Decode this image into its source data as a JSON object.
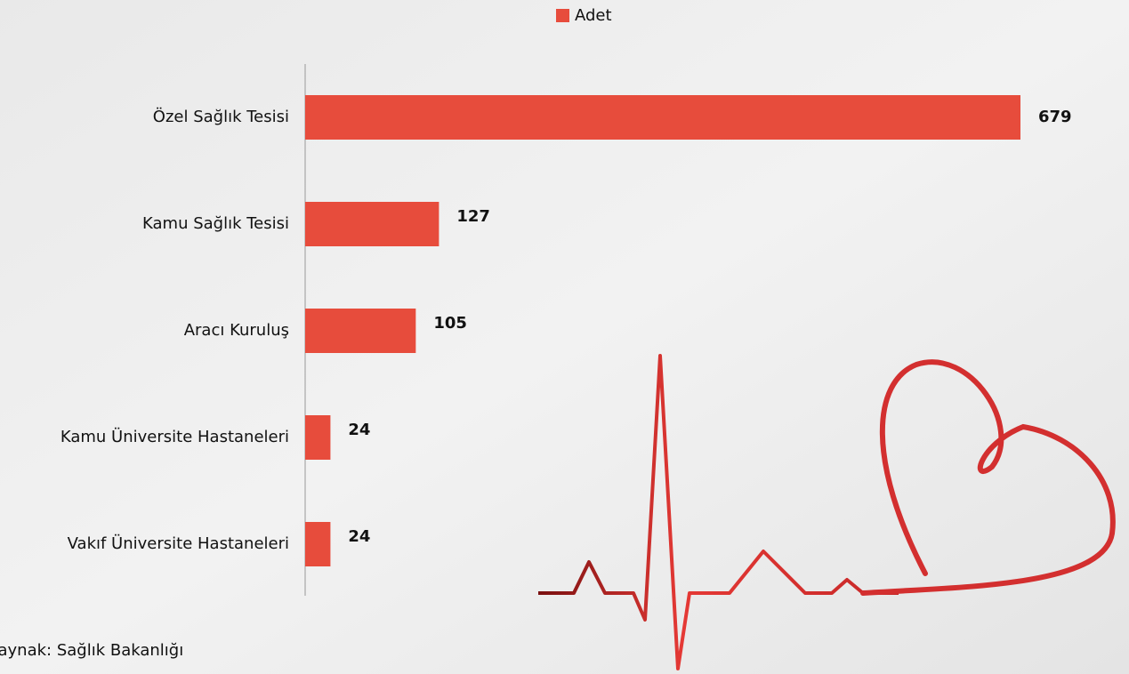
{
  "chart_data": {
    "type": "bar",
    "orientation": "horizontal",
    "categories": [
      "Özel Sağlık Tesisi",
      "Kamu Sağlık Tesisi",
      "Aracı Kuruluş",
      "Kamu Üniversite Hastaneleri",
      "Vakıf Üniversite Hastaneleri"
    ],
    "series": [
      {
        "name": "Adet",
        "color": "#e74c3c",
        "values": [
          679,
          127,
          105,
          24,
          24
        ]
      }
    ],
    "legend": "top",
    "source": "Kaynak: Sağlık Bakanlığı"
  }
}
